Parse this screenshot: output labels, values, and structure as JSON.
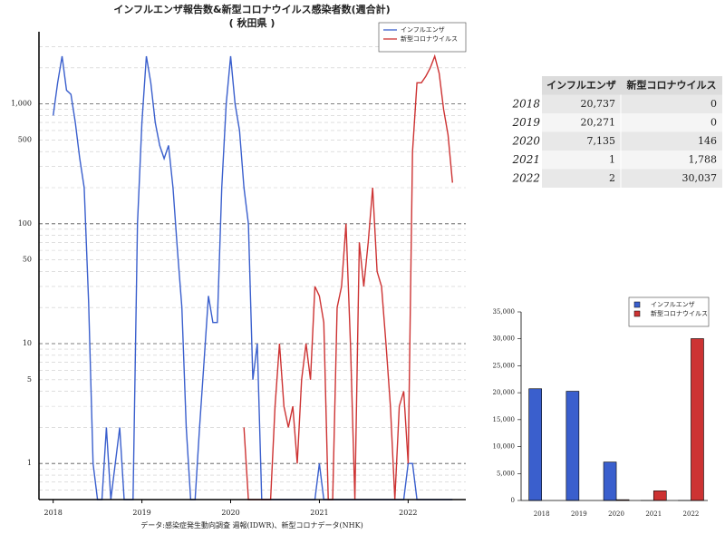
{
  "chart_data": [
    {
      "type": "line",
      "title": "インフルエンザ報告数&新型コロナウイルス感染者数(週合計)",
      "subtitle": "( 秋田県 )",
      "source": "データ:感染症発生動向調査 週報(IDWR)、新型コロナデータ(NHK)",
      "x": [
        2018.0,
        2018.05,
        2018.1,
        2018.15,
        2018.2,
        2018.25,
        2018.3,
        2018.35,
        2018.4,
        2018.45,
        2018.5,
        2018.55,
        2018.6,
        2018.65,
        2018.7,
        2018.75,
        2018.8,
        2018.85,
        2018.9,
        2018.95,
        2019.0,
        2019.05,
        2019.1,
        2019.15,
        2019.2,
        2019.25,
        2019.3,
        2019.35,
        2019.4,
        2019.45,
        2019.5,
        2019.55,
        2019.6,
        2019.65,
        2019.7,
        2019.75,
        2019.8,
        2019.85,
        2019.9,
        2019.95,
        2020.0,
        2020.05,
        2020.1,
        2020.15,
        2020.2,
        2020.25,
        2020.3,
        2020.35,
        2020.4,
        2020.45,
        2020.5,
        2020.55,
        2020.6,
        2020.65,
        2020.7,
        2020.75,
        2020.8,
        2020.85,
        2020.9,
        2020.95,
        2021.0,
        2021.05,
        2021.1,
        2021.15,
        2021.2,
        2021.25,
        2021.3,
        2021.35,
        2021.4,
        2021.45,
        2021.5,
        2021.55,
        2021.6,
        2021.65,
        2021.7,
        2021.75,
        2021.8,
        2021.85,
        2021.9,
        2021.95,
        2022.0,
        2022.05,
        2022.1,
        2022.15,
        2022.2,
        2022.25,
        2022.3,
        2022.35,
        2022.4,
        2022.45,
        2022.5
      ],
      "series": [
        {
          "name": "インフルエンザ",
          "color": "#3a5fcd",
          "values": [
            800,
            1500,
            2500,
            1300,
            1200,
            700,
            350,
            200,
            22,
            1,
            0,
            0,
            2,
            0,
            1,
            2,
            0,
            0,
            0,
            100,
            700,
            2500,
            1500,
            700,
            450,
            350,
            450,
            200,
            60,
            20,
            2,
            0,
            0,
            2,
            7,
            25,
            15,
            15,
            200,
            1000,
            2500,
            1000,
            600,
            200,
            100,
            5,
            10,
            0,
            0,
            0,
            0,
            0,
            0,
            0,
            0,
            0,
            0,
            0,
            0,
            0,
            1,
            0,
            0,
            0,
            0,
            0,
            0,
            0,
            0,
            0,
            0,
            0,
            0,
            0,
            0,
            0,
            0,
            0,
            0,
            0,
            1,
            1,
            0,
            0,
            0,
            0,
            0,
            0,
            0,
            0,
            0
          ]
        },
        {
          "name": "新型コロナウイルス",
          "color": "#cd3333",
          "values": [
            null,
            null,
            null,
            null,
            null,
            null,
            null,
            null,
            null,
            null,
            null,
            null,
            null,
            null,
            null,
            null,
            null,
            null,
            null,
            null,
            null,
            null,
            null,
            null,
            null,
            null,
            null,
            null,
            null,
            null,
            null,
            null,
            null,
            null,
            null,
            null,
            null,
            null,
            null,
            null,
            null,
            null,
            null,
            2,
            0,
            0,
            0,
            0,
            0,
            0,
            3,
            10,
            3,
            2,
            3,
            1,
            5,
            10,
            5,
            30,
            25,
            15,
            0,
            0,
            20,
            30,
            100,
            10,
            0,
            70,
            30,
            70,
            200,
            40,
            30,
            10,
            3,
            0,
            3,
            4,
            1,
            400,
            1500,
            1500,
            1700,
            2000,
            2500,
            1800,
            900,
            550,
            220
          ]
        }
      ],
      "xlim": [
        2017.84,
        2022.65
      ],
      "xticks": [
        2018,
        2019,
        2020,
        2021,
        2022
      ],
      "ylim": [
        0.5,
        4000
      ],
      "log_scale": true,
      "yticks": [
        1,
        5,
        10,
        50,
        100,
        500,
        {
          "value": 1000,
          "label": "1,000"
        }
      ],
      "minor_yticks": [
        0.6,
        0.7,
        0.8,
        0.9,
        2,
        3,
        4,
        6,
        7,
        8,
        9,
        20,
        30,
        40,
        60,
        70,
        80,
        90,
        200,
        300,
        400,
        600,
        700,
        800,
        900,
        2000,
        3000
      ],
      "grid": true,
      "legend": "upper right"
    },
    {
      "type": "bar",
      "categories": [
        "2018",
        "2019",
        "2020",
        "2021",
        "2022"
      ],
      "series": [
        {
          "name": "インフルエンザ",
          "color": "#3a5fcd",
          "values": [
            20737,
            20271,
            7135,
            1,
            2
          ]
        },
        {
          "name": "新型コロナウイルス",
          "color": "#cd3333",
          "values": [
            0,
            0,
            146,
            1788,
            30037
          ]
        }
      ],
      "ylim": [
        0,
        35000
      ],
      "yticks": [
        0,
        {
          "value": 5000,
          "label": "5,000"
        },
        {
          "value": 10000,
          "label": "10,000"
        },
        {
          "value": 15000,
          "label": "15,000"
        },
        {
          "value": 20000,
          "label": "20,000"
        },
        {
          "value": 25000,
          "label": "25,000"
        },
        {
          "value": 30000,
          "label": "30,000"
        },
        {
          "value": 35000,
          "label": "35,000"
        }
      ],
      "legend": "upper right"
    }
  ],
  "table": {
    "header": [
      "インフルエンザ",
      "新型コロナウイルス"
    ],
    "rows": [
      [
        "2018",
        "20,737",
        "0"
      ],
      [
        "2019",
        "20,271",
        "0"
      ],
      [
        "2020",
        "7,135",
        "146"
      ],
      [
        "2021",
        "1",
        "1,788"
      ],
      [
        "2022",
        "2",
        "30,037"
      ]
    ]
  }
}
